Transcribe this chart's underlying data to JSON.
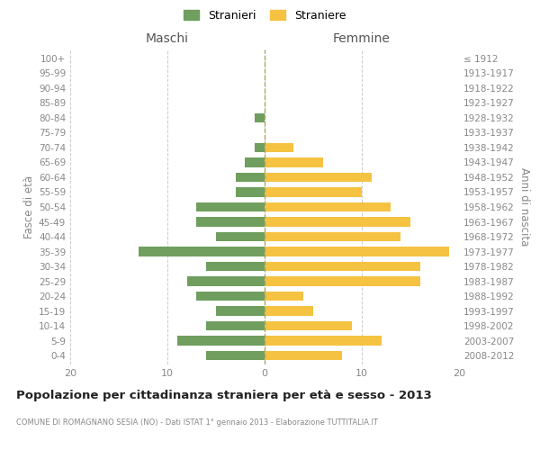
{
  "age_groups": [
    "0-4",
    "5-9",
    "10-14",
    "15-19",
    "20-24",
    "25-29",
    "30-34",
    "35-39",
    "40-44",
    "45-49",
    "50-54",
    "55-59",
    "60-64",
    "65-69",
    "70-74",
    "75-79",
    "80-84",
    "85-89",
    "90-94",
    "95-99",
    "100+"
  ],
  "birth_years": [
    "2008-2012",
    "2003-2007",
    "1998-2002",
    "1993-1997",
    "1988-1992",
    "1983-1987",
    "1978-1982",
    "1973-1977",
    "1968-1972",
    "1963-1967",
    "1958-1962",
    "1953-1957",
    "1948-1952",
    "1943-1947",
    "1938-1942",
    "1933-1937",
    "1928-1932",
    "1923-1927",
    "1918-1922",
    "1913-1917",
    "≤ 1912"
  ],
  "maschi": [
    6,
    9,
    6,
    5,
    7,
    8,
    6,
    13,
    5,
    7,
    7,
    3,
    3,
    2,
    1,
    0,
    1,
    0,
    0,
    0,
    0
  ],
  "femmine": [
    8,
    12,
    9,
    5,
    4,
    16,
    16,
    19,
    14,
    15,
    13,
    10,
    11,
    6,
    3,
    0,
    0,
    0,
    0,
    0,
    0
  ],
  "color_maschi": "#6f9e5f",
  "color_femmine": "#f5c242",
  "title": "Popolazione per cittadinanza straniera per età e sesso - 2013",
  "subtitle": "COMUNE DI ROMAGNANO SESIA (NO) - Dati ISTAT 1° gennaio 2013 - Elaborazione TUTTITALIA.IT",
  "xlabel_left": "Maschi",
  "xlabel_right": "Femmine",
  "ylabel_left": "Fasce di età",
  "ylabel_right": "Anni di nascita",
  "xlim": 20,
  "legend_stranieri": "Stranieri",
  "legend_straniere": "Straniere",
  "bg_color": "#ffffff",
  "grid_color": "#cccccc"
}
